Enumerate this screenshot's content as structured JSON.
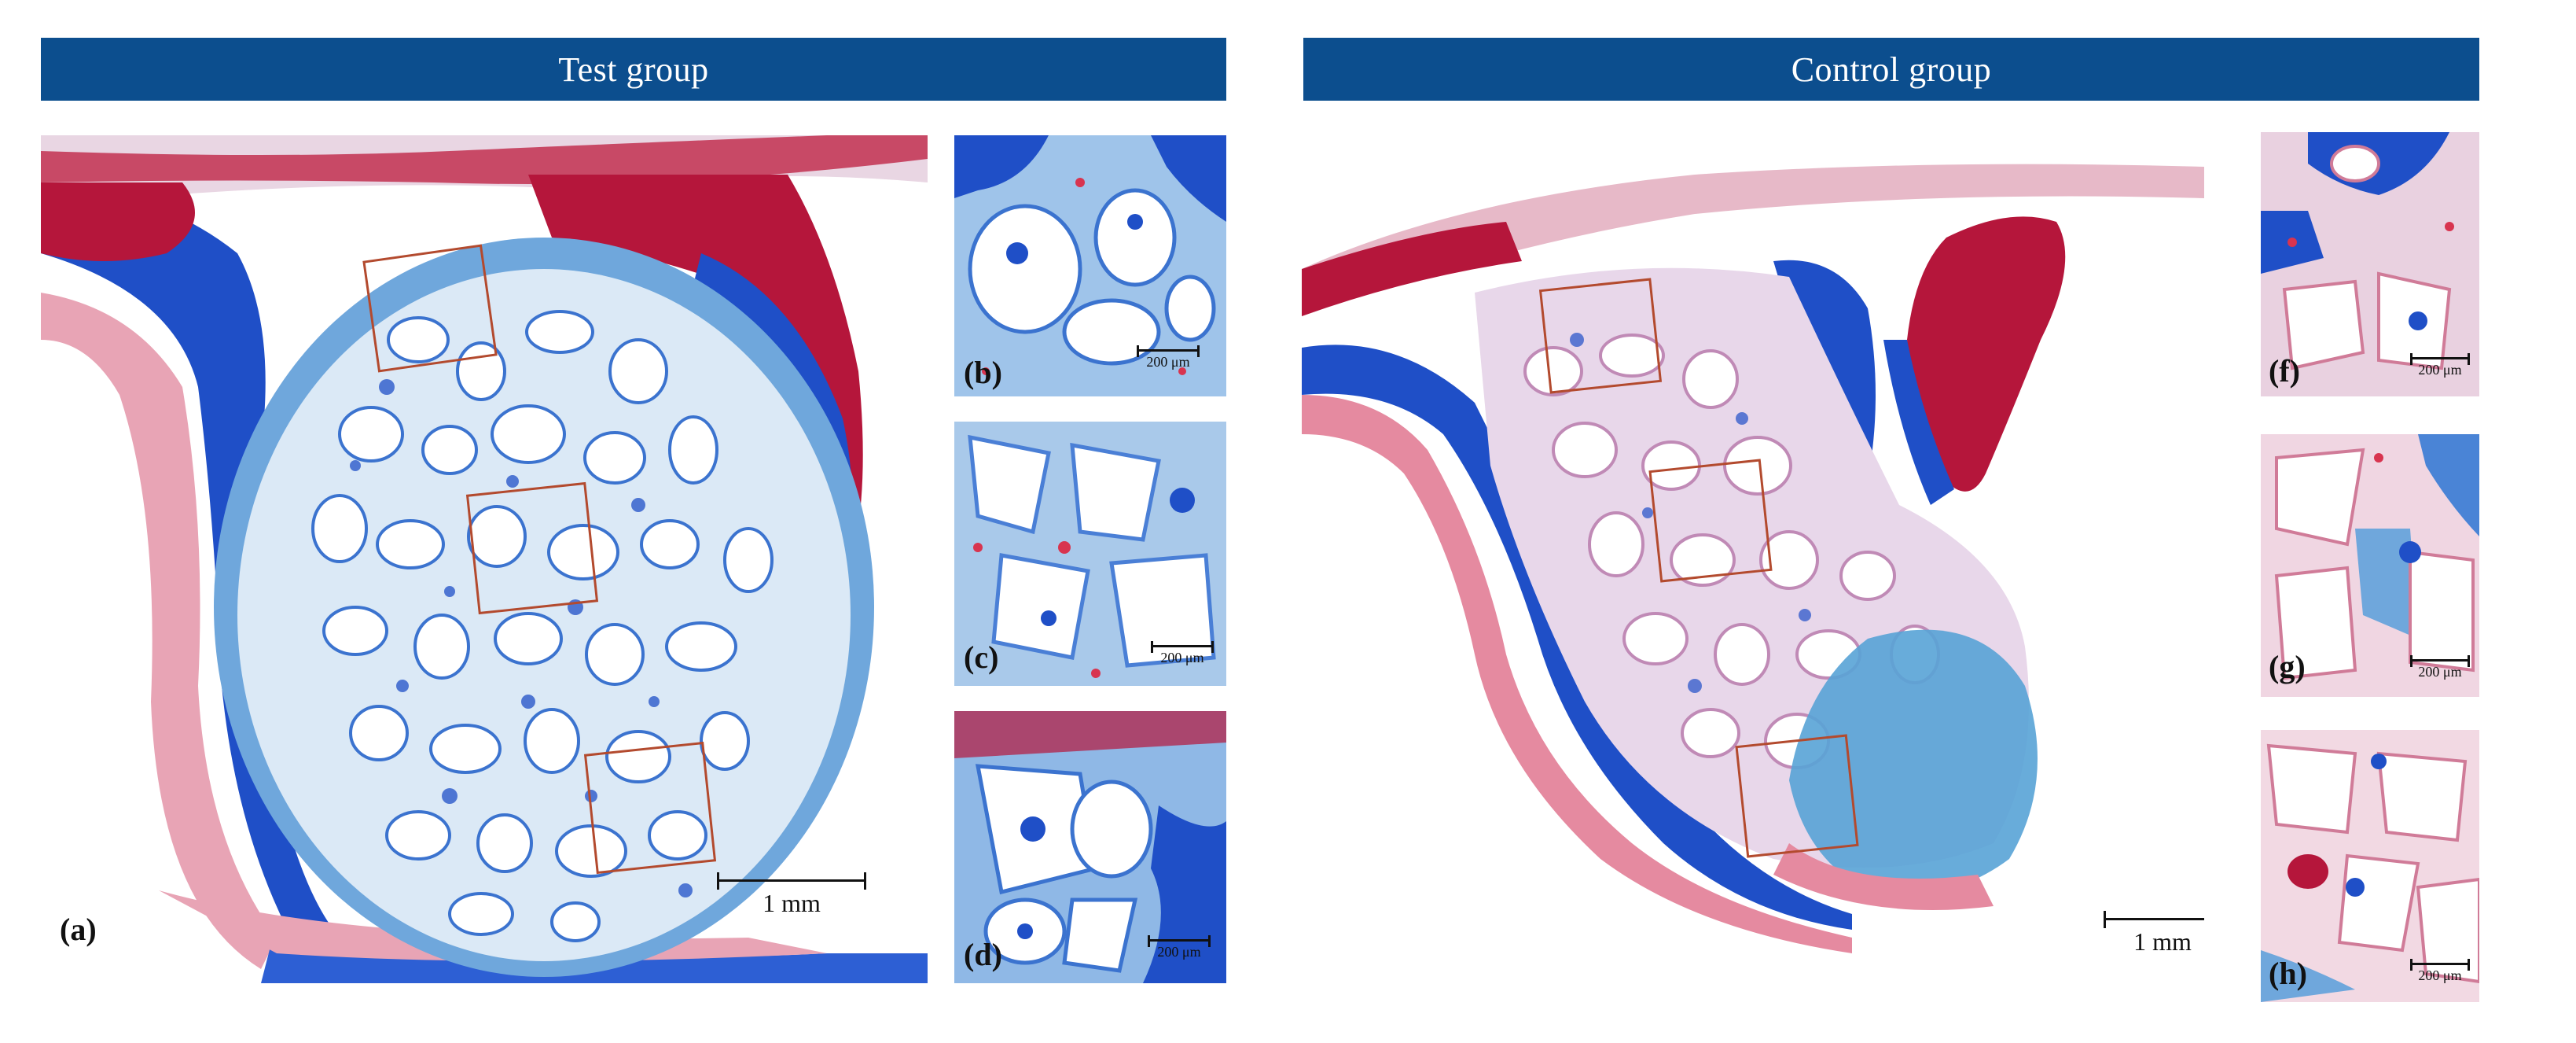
{
  "groups": [
    {
      "title": "Test group",
      "main": {
        "label": "(a)",
        "scale": "1 mm"
      },
      "insets": [
        {
          "label": "(b)",
          "scale": "200 μm"
        },
        {
          "label": "(c)",
          "scale": "200 μm"
        },
        {
          "label": "(d)",
          "scale": "200 μm"
        }
      ]
    },
    {
      "title": "Control group",
      "main": {
        "label": "",
        "scale": "1 mm"
      },
      "insets": [
        {
          "label": "(f)",
          "scale": "200 μm"
        },
        {
          "label": "(g)",
          "scale": "200 μm"
        },
        {
          "label": "(h)",
          "scale": "200 μm"
        }
      ]
    }
  ],
  "stain_colors": {
    "collagen_blue": "#1f4fc7",
    "light_blue": "#6fa7dc",
    "muscle_red": "#b5163b",
    "pink": "#e46a7e",
    "header_blue": "#0c4e8e"
  }
}
